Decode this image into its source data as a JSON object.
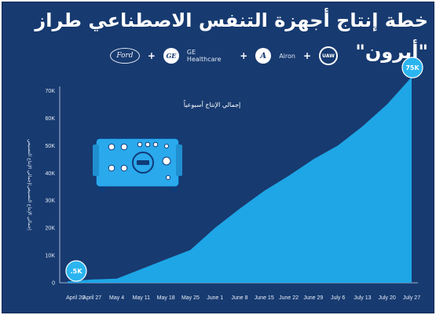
{
  "title": "خطة إنتاج أجهزة التنفس الاصطناعي طراز \"أيرون\"",
  "logos": {
    "ford": "Ford",
    "ge": "GE",
    "ge_text": "GE Healthcare",
    "airon": "Airon",
    "uaw": "UAW",
    "plus": "+",
    "ford_icon": "ford-logo-icon",
    "ge_icon": "ge-logo-icon",
    "airon_icon": "airon-logo-icon",
    "uaw_icon": "uaw-seal-icon"
  },
  "colors": {
    "background": "#173a70",
    "area_fill": "#1ea6e6",
    "highlight": "#2bb5f0",
    "ventilator": "#2aa9ec"
  },
  "chart_data": {
    "type": "area",
    "title": "",
    "annotation": "إجمالي الإنتاج أسبوعياً",
    "ylabel": "إجمالي الإنتاج التصنيعي/إجمالي الإنتاج التصنيعي",
    "xlabel": "",
    "categories": [
      "April 20",
      "April 27",
      "May 4",
      "May 11",
      "May 18",
      "May 25",
      "June 1",
      "June 8",
      "June 15",
      "June 22",
      "June 29",
      "July 6",
      "July 13",
      "July 20",
      "July 27"
    ],
    "values": [
      0.5,
      1.2,
      1.5,
      5,
      8.5,
      12,
      20,
      27,
      33.5,
      39,
      45,
      50,
      57,
      65,
      75
    ],
    "yticks": [
      "0",
      "10K",
      "20K",
      "30K",
      "40K",
      "50K",
      "60K",
      "70K"
    ],
    "ylim": [
      0,
      75
    ],
    "grid": false,
    "labels": {
      "start": ".5K",
      "end": "75K"
    }
  }
}
